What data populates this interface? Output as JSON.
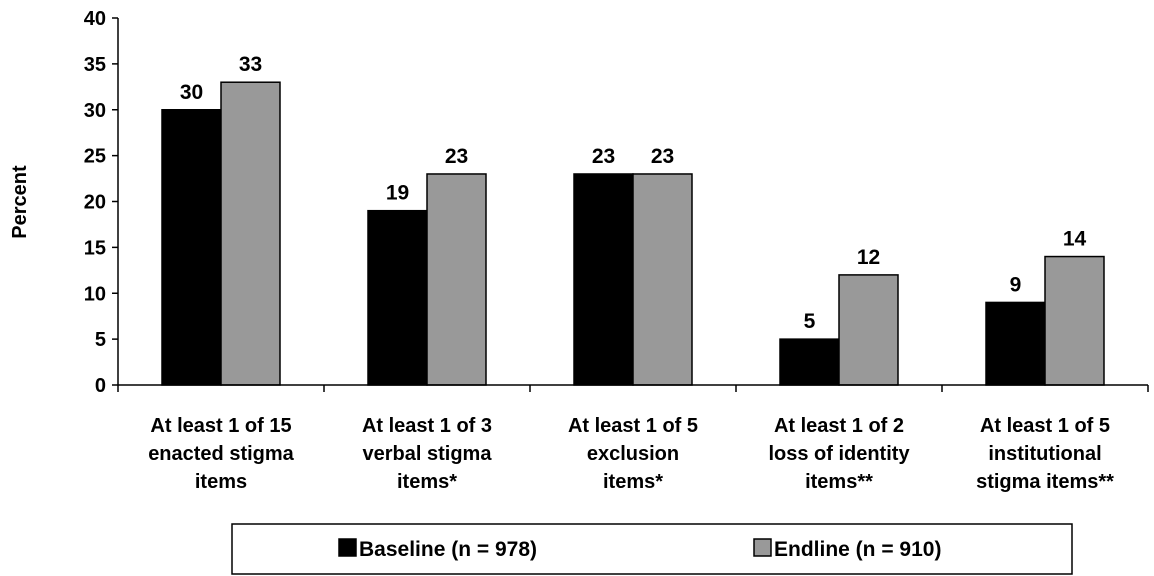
{
  "chart_data": {
    "type": "bar",
    "title": "",
    "xlabel": "",
    "ylabel": "Percent",
    "ylim": [
      0,
      40
    ],
    "yticks": [
      "0",
      "5",
      "10",
      "15",
      "20",
      "25",
      "30",
      "35",
      "40"
    ],
    "categories": [
      [
        "At least 1 of 15",
        "enacted stigma",
        "items"
      ],
      [
        "At least 1 of 3",
        "verbal stigma",
        "items*"
      ],
      [
        "At least 1 of 5",
        "exclusion",
        "items*"
      ],
      [
        "At least 1 of 2",
        "loss of identity",
        "items**"
      ],
      [
        "At least 1 of 5",
        "institutional",
        "stigma items**"
      ]
    ],
    "series": [
      {
        "name": "Baseline (n = 978)",
        "color": "#000000",
        "values": [
          30,
          19,
          23,
          5,
          9
        ]
      },
      {
        "name": "Endline (n = 910)",
        "color": "#999999",
        "values": [
          33,
          23,
          23,
          12,
          14
        ]
      }
    ],
    "grid": false,
    "legend_position": "bottom"
  }
}
